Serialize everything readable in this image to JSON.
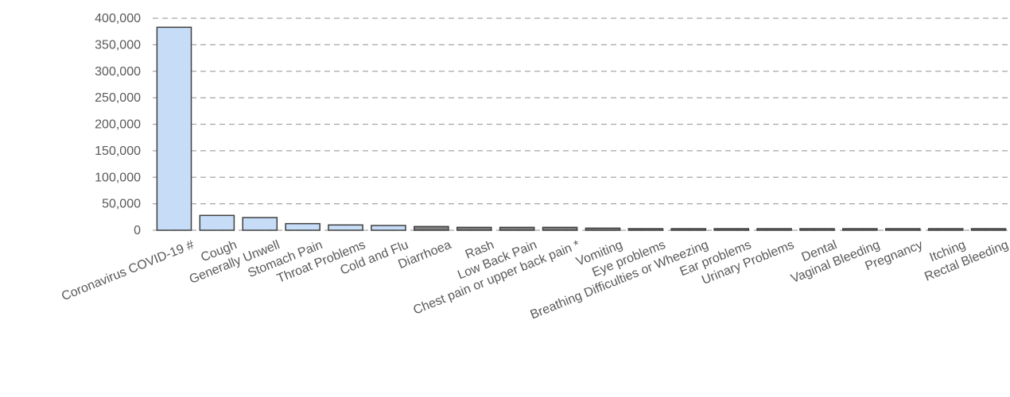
{
  "chart_data": {
    "type": "bar",
    "title": "",
    "xlabel": "",
    "ylabel": "",
    "ylim": [
      0,
      400000
    ],
    "yticks": [
      0,
      50000,
      100000,
      150000,
      200000,
      250000,
      300000,
      350000,
      400000
    ],
    "ytick_labels": [
      "0",
      "50,000",
      "100,000",
      "150,000",
      "200,000",
      "250,000",
      "300,000",
      "350,000",
      "400,000"
    ],
    "grid": "horizontal dashed",
    "categories": [
      "Coronavirus COVID-19 #",
      "Cough",
      "Generally Unwell",
      "Stomach Pain",
      "Throat Problems",
      "Cold and Flu",
      "Diarrhoea",
      "Rash",
      "Low Back Pain",
      "Chest pain or upper back pain *",
      "Vomiting",
      "Eye problems",
      "Breathing Difficulties or Wheezing",
      "Ear problems",
      "Urinary Problems",
      "Dental",
      "Vaginal Bleeding",
      "Pregnancy",
      "Itching",
      "Rectal Bleeding"
    ],
    "values": [
      383000,
      28000,
      24000,
      12500,
      10000,
      9000,
      7000,
      5500,
      5500,
      5500,
      4000,
      3000,
      3000,
      3000,
      3000,
      3000,
      3000,
      3000,
      3000,
      3000
    ],
    "colors": {
      "bar_fill": "#c6dcf7",
      "bar_fill_small": "#7f7f7f",
      "bar_stroke": "#404040",
      "grid": "#a6a6a6",
      "text": "#595959"
    }
  }
}
